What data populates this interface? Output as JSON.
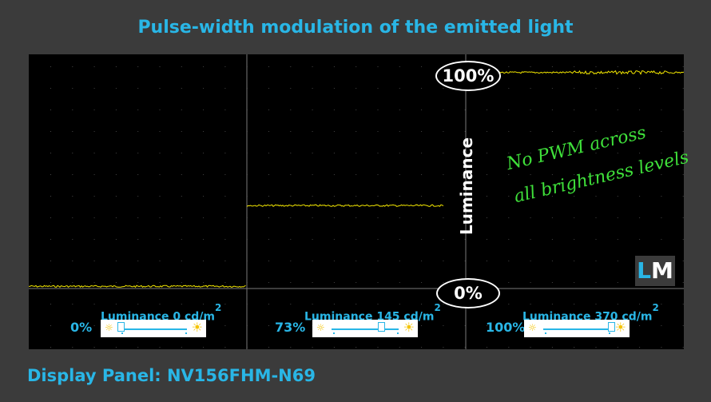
{
  "title": "Pulse-width modulation of the emitted light",
  "footer": "Display Panel: NV156FHM-N69",
  "labels": {
    "axis": "Luminance",
    "top_marker": "100%",
    "bottom_marker": "0%",
    "note_line1": "No PWM across",
    "note_line2": "all brightness levels",
    "logo_l": "L",
    "logo_m": "M"
  },
  "panels": [
    {
      "luminance_label": "Luminance",
      "luminance_value": "0 cd/m",
      "unit_exp": "2",
      "brightness": "0%",
      "slider_fraction": 0.0
    },
    {
      "luminance_label": "Luminance",
      "luminance_value": "145 cd/m",
      "unit_exp": "2",
      "brightness": "73%",
      "slider_fraction": 0.73
    },
    {
      "luminance_label": "Luminance",
      "luminance_value": "370 cd/m",
      "unit_exp": "2",
      "brightness": "100%",
      "slider_fraction": 1.0
    }
  ],
  "colors": {
    "trace": "#f2e600",
    "accent": "#29b6e6",
    "note": "#3fe03a",
    "grid": "#7a7a7a"
  },
  "chart_data": {
    "type": "line",
    "title": "Pulse-width modulation of the emitted light",
    "ylabel": "Luminance",
    "ylim": [
      0,
      100
    ],
    "grid": true,
    "series": [
      {
        "name": "",
        "segment": 1,
        "brightness_percent": 0,
        "luminance_cd_m2": 0,
        "level_percent": 1
      },
      {
        "name": "",
        "segment": 2,
        "brightness_percent": 73,
        "luminance_cd_m2": 145,
        "level_percent": 38
      },
      {
        "name": "",
        "segment": 3,
        "brightness_percent": 100,
        "luminance_cd_m2": 370,
        "level_percent": 99
      }
    ],
    "annotations": [
      "100%",
      "0%",
      "No PWM across",
      "all brightness levels"
    ]
  }
}
